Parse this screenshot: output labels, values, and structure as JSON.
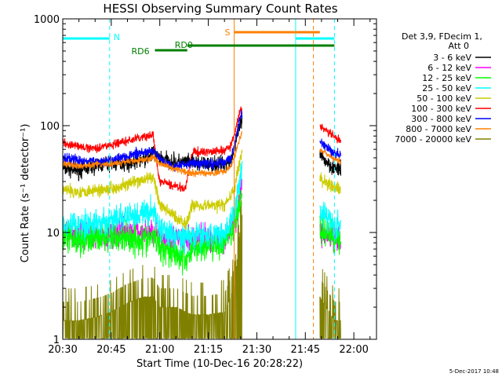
{
  "chart_data": {
    "type": "line",
    "title": "HESSI Observing Summary Count Rates",
    "xlabel": "Start Time (10-Dec-16 20:28:22)",
    "ylabel": "Count Rate (s⁻¹ detector⁻¹)",
    "y_scale": "log",
    "ylim": [
      1,
      1000
    ],
    "x_range_minutes_after_20_30": [
      0,
      97
    ],
    "x_ticks": [
      "20:30",
      "20:45",
      "21:00",
      "21:15",
      "21:30",
      "21:45",
      "22:00"
    ],
    "y_ticks": [
      "1",
      "10",
      "100",
      "1000"
    ],
    "legend_header": [
      "Det 3,9, FDecim 1,",
      "Att 0"
    ],
    "legend_position": "outside-right",
    "timestamp": "5-Dec-2017 10:48",
    "data_gaps_minutes": [
      [
        55.5,
        79.5
      ]
    ],
    "state_bars": [
      {
        "label": "N",
        "color": "#00ffff",
        "level": 1,
        "segments": [
          [
            0,
            14.5
          ],
          [
            72,
            84
          ]
        ]
      },
      {
        "label": "S",
        "color": "#ff8000",
        "level": 0,
        "segments": [
          [
            53,
            79.5
          ]
        ]
      },
      {
        "label": "RD0",
        "color": "#008000",
        "level": 2,
        "segments": [
          [
            38.5,
            84
          ]
        ]
      },
      {
        "label": "RD6",
        "color": "#008000",
        "level": 3,
        "segments": [
          [
            28.5,
            38.5
          ]
        ]
      }
    ],
    "vertical_markers": [
      {
        "minute": 0,
        "color": "#00ffff",
        "style": "solid"
      },
      {
        "minute": 14.5,
        "color": "#00ffff",
        "style": "dashed"
      },
      {
        "minute": 72,
        "color": "#00ffff",
        "style": "solid"
      },
      {
        "minute": 84,
        "color": "#00ffff",
        "style": "dashed"
      },
      {
        "minute": 53,
        "color": "#ff8000",
        "style": "solid"
      },
      {
        "minute": 77.5,
        "color": "#ff8000",
        "style": "dashed"
      }
    ],
    "series": [
      {
        "name": "3 - 6 keV",
        "color": "#000000",
        "noise": 0.15,
        "points": [
          [
            0,
            40
          ],
          [
            5,
            38
          ],
          [
            10,
            42
          ],
          [
            15,
            44
          ],
          [
            20,
            45
          ],
          [
            25,
            48
          ],
          [
            28,
            55
          ],
          [
            30,
            50
          ],
          [
            34,
            46
          ],
          [
            40,
            45
          ],
          [
            45,
            43
          ],
          [
            50,
            44
          ],
          [
            52,
            48
          ],
          [
            53,
            60
          ],
          [
            54,
            80
          ],
          [
            55,
            105
          ],
          [
            55.5,
            110
          ],
          [
            79.5,
            52
          ],
          [
            84,
            40
          ],
          [
            86,
            38
          ]
        ]
      },
      {
        "name": "6 - 12 keV",
        "color": "#ff00ff",
        "noise": 0.25,
        "points": [
          [
            0,
            10
          ],
          [
            5,
            9.5
          ],
          [
            10,
            9.5
          ],
          [
            15,
            9.5
          ],
          [
            20,
            10
          ],
          [
            25,
            10
          ],
          [
            28,
            10
          ],
          [
            30,
            9
          ],
          [
            35,
            8.5
          ],
          [
            40,
            8.5
          ],
          [
            45,
            8.5
          ],
          [
            50,
            9
          ],
          [
            53,
            12
          ],
          [
            55,
            25
          ],
          [
            55.5,
            30
          ],
          [
            79.5,
            10
          ],
          [
            84,
            8.5
          ],
          [
            86,
            8
          ]
        ]
      },
      {
        "name": "12 - 25 keV",
        "color": "#00ff00",
        "noise": 0.3,
        "points": [
          [
            0,
            9
          ],
          [
            5,
            9
          ],
          [
            10,
            9
          ],
          [
            15,
            9
          ],
          [
            20,
            9
          ],
          [
            25,
            8.5
          ],
          [
            28,
            9
          ],
          [
            30,
            7.5
          ],
          [
            35,
            6.5
          ],
          [
            38,
            5.5
          ],
          [
            40,
            7
          ],
          [
            45,
            7.5
          ],
          [
            50,
            8
          ],
          [
            53,
            11
          ],
          [
            55,
            20
          ],
          [
            55.5,
            25
          ],
          [
            79.5,
            11
          ],
          [
            84,
            9
          ],
          [
            86,
            9
          ]
        ]
      },
      {
        "name": "25 - 50 keV",
        "color": "#00ffff",
        "noise": 0.25,
        "points": [
          [
            0,
            12
          ],
          [
            5,
            12
          ],
          [
            10,
            12
          ],
          [
            15,
            13
          ],
          [
            20,
            14
          ],
          [
            25,
            15
          ],
          [
            28,
            16
          ],
          [
            30,
            11
          ],
          [
            35,
            9
          ],
          [
            40,
            9
          ],
          [
            45,
            9.5
          ],
          [
            50,
            10
          ],
          [
            53,
            14
          ],
          [
            55,
            35
          ],
          [
            55.5,
            45
          ],
          [
            79.5,
            16
          ],
          [
            84,
            12
          ],
          [
            86,
            11
          ]
        ]
      },
      {
        "name": "50 - 100 keV",
        "color": "#cccc00",
        "noise": 0.12,
        "points": [
          [
            0,
            25
          ],
          [
            5,
            24
          ],
          [
            10,
            25
          ],
          [
            15,
            26
          ],
          [
            20,
            28
          ],
          [
            25,
            31
          ],
          [
            28,
            33
          ],
          [
            29,
            25
          ],
          [
            30,
            18
          ],
          [
            35,
            14
          ],
          [
            38,
            12
          ],
          [
            40,
            18
          ],
          [
            45,
            18
          ],
          [
            50,
            18
          ],
          [
            53,
            25
          ],
          [
            55,
            50
          ],
          [
            55.5,
            60
          ],
          [
            79.5,
            32
          ],
          [
            84,
            26
          ],
          [
            86,
            25
          ]
        ]
      },
      {
        "name": "100 - 300 keV",
        "color": "#ff0000",
        "noise": 0.08,
        "points": [
          [
            0,
            70
          ],
          [
            5,
            63
          ],
          [
            10,
            62
          ],
          [
            15,
            66
          ],
          [
            20,
            72
          ],
          [
            25,
            78
          ],
          [
            28,
            82
          ],
          [
            29,
            45
          ],
          [
            30,
            30
          ],
          [
            35,
            27
          ],
          [
            38,
            26
          ],
          [
            40,
            56
          ],
          [
            45,
            57
          ],
          [
            50,
            58
          ],
          [
            52,
            65
          ],
          [
            53,
            80
          ],
          [
            54,
            110
          ],
          [
            55,
            140
          ],
          [
            55.5,
            150
          ],
          [
            79.5,
            100
          ],
          [
            84,
            78
          ],
          [
            86,
            72
          ]
        ]
      },
      {
        "name": "300 - 800 keV",
        "color": "#0000ff",
        "noise": 0.1,
        "points": [
          [
            0,
            50
          ],
          [
            5,
            47
          ],
          [
            10,
            46
          ],
          [
            15,
            48
          ],
          [
            20,
            52
          ],
          [
            25,
            56
          ],
          [
            28,
            58
          ],
          [
            30,
            48
          ],
          [
            34,
            42
          ],
          [
            40,
            45
          ],
          [
            45,
            44
          ],
          [
            50,
            45
          ],
          [
            52,
            50
          ],
          [
            53,
            65
          ],
          [
            54,
            90
          ],
          [
            55,
            120
          ],
          [
            55.5,
            130
          ],
          [
            79.5,
            70
          ],
          [
            84,
            55
          ],
          [
            86,
            52
          ]
        ]
      },
      {
        "name": "800 - 7000 keV",
        "color": "#ff8000",
        "noise": 0.06,
        "points": [
          [
            0,
            44
          ],
          [
            5,
            42
          ],
          [
            10,
            43
          ],
          [
            15,
            44
          ],
          [
            20,
            46
          ],
          [
            25,
            48
          ],
          [
            28,
            50
          ],
          [
            30,
            45
          ],
          [
            34,
            40
          ],
          [
            40,
            36
          ],
          [
            45,
            36
          ],
          [
            50,
            37
          ],
          [
            52,
            42
          ],
          [
            53,
            50
          ],
          [
            54,
            65
          ],
          [
            55,
            80
          ],
          [
            55.5,
            85
          ],
          [
            79.5,
            60
          ],
          [
            84,
            48
          ],
          [
            86,
            46
          ]
        ]
      },
      {
        "name": "7000 - 20000 keV",
        "color": "#808000",
        "noise": 0.5,
        "steps": true,
        "points": [
          [
            0,
            1.5
          ],
          [
            5,
            1.5
          ],
          [
            10,
            1.6
          ],
          [
            15,
            1.8
          ],
          [
            20,
            2.2
          ],
          [
            25,
            2.5
          ],
          [
            28,
            2.5
          ],
          [
            30,
            2
          ],
          [
            35,
            2
          ],
          [
            40,
            1.7
          ],
          [
            45,
            1.7
          ],
          [
            50,
            1.8
          ],
          [
            53,
            3
          ],
          [
            54,
            6
          ],
          [
            55,
            12
          ],
          [
            55.5,
            15
          ],
          [
            79.5,
            2.5
          ],
          [
            84,
            1.5
          ],
          [
            86,
            1.5
          ]
        ]
      }
    ]
  }
}
